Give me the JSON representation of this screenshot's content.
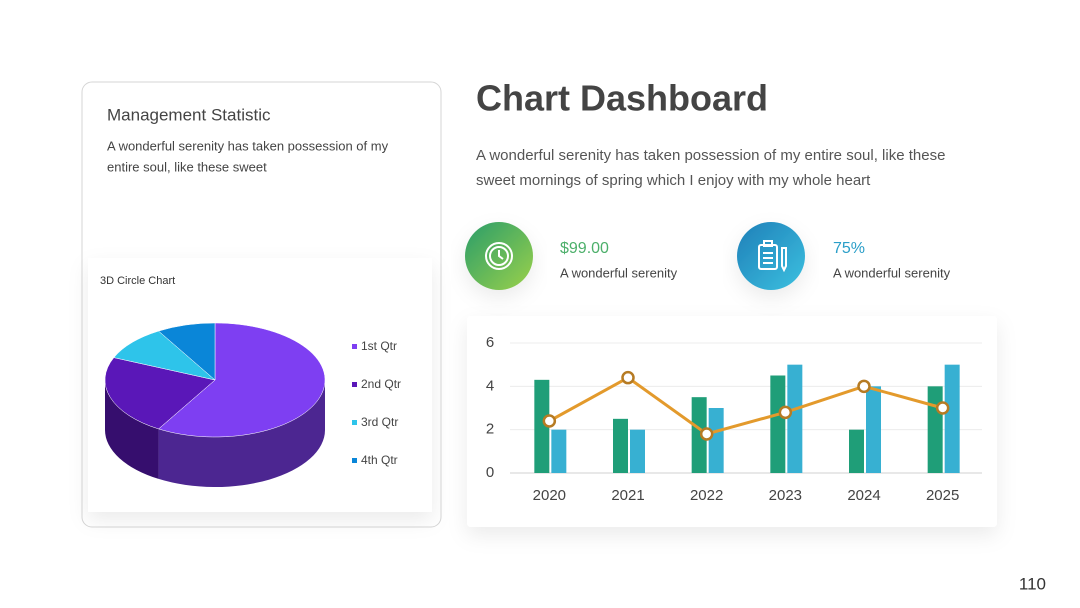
{
  "slide": {
    "title": "Chart Dashboard",
    "description": [
      "A wonderful serenity has taken possession of my entire soul, like these",
      "sweet mornings of spring which I enjoy with my whole heart"
    ],
    "stats": [
      {
        "value": "$99.00",
        "label": "A wonderful serenity"
      },
      {
        "value": "75%",
        "label": "A wonderful serenity"
      }
    ],
    "card": {
      "title": "Management Statistic",
      "text": [
        "A wonderful serenity has taken possession of my",
        "entire soul, like these sweet"
      ]
    },
    "page_number": "110"
  },
  "chart_data": [
    {
      "type": "pie",
      "title": "3D Circle Chart",
      "categories": [
        "1st Qtr",
        "2nd Qtr",
        "3rd Qtr",
        "4th Qtr"
      ],
      "values": [
        8.2,
        3.2,
        1.4,
        1.2
      ],
      "colors": [
        "#7e3ff2",
        "#5a17b8",
        "#2ec4ea",
        "#0a86d8"
      ]
    },
    {
      "type": "bar",
      "categories": [
        "2020",
        "2021",
        "2022",
        "2023",
        "2024",
        "2025"
      ],
      "series": [
        {
          "color": "#1f9e78",
          "values": [
            4.3,
            2.5,
            3.5,
            4.5,
            2,
            4
          ]
        },
        {
          "color": "#37b0d2",
          "values": [
            2,
            2,
            3,
            5,
            4,
            5
          ]
        },
        {
          "type": "line",
          "color": "#e39a2c",
          "values": [
            2.4,
            4.4,
            1.8,
            2.8,
            4,
            3
          ]
        }
      ],
      "ylim": [
        0,
        6
      ],
      "yticks": [
        0,
        2,
        4,
        6
      ],
      "grid": true
    }
  ]
}
